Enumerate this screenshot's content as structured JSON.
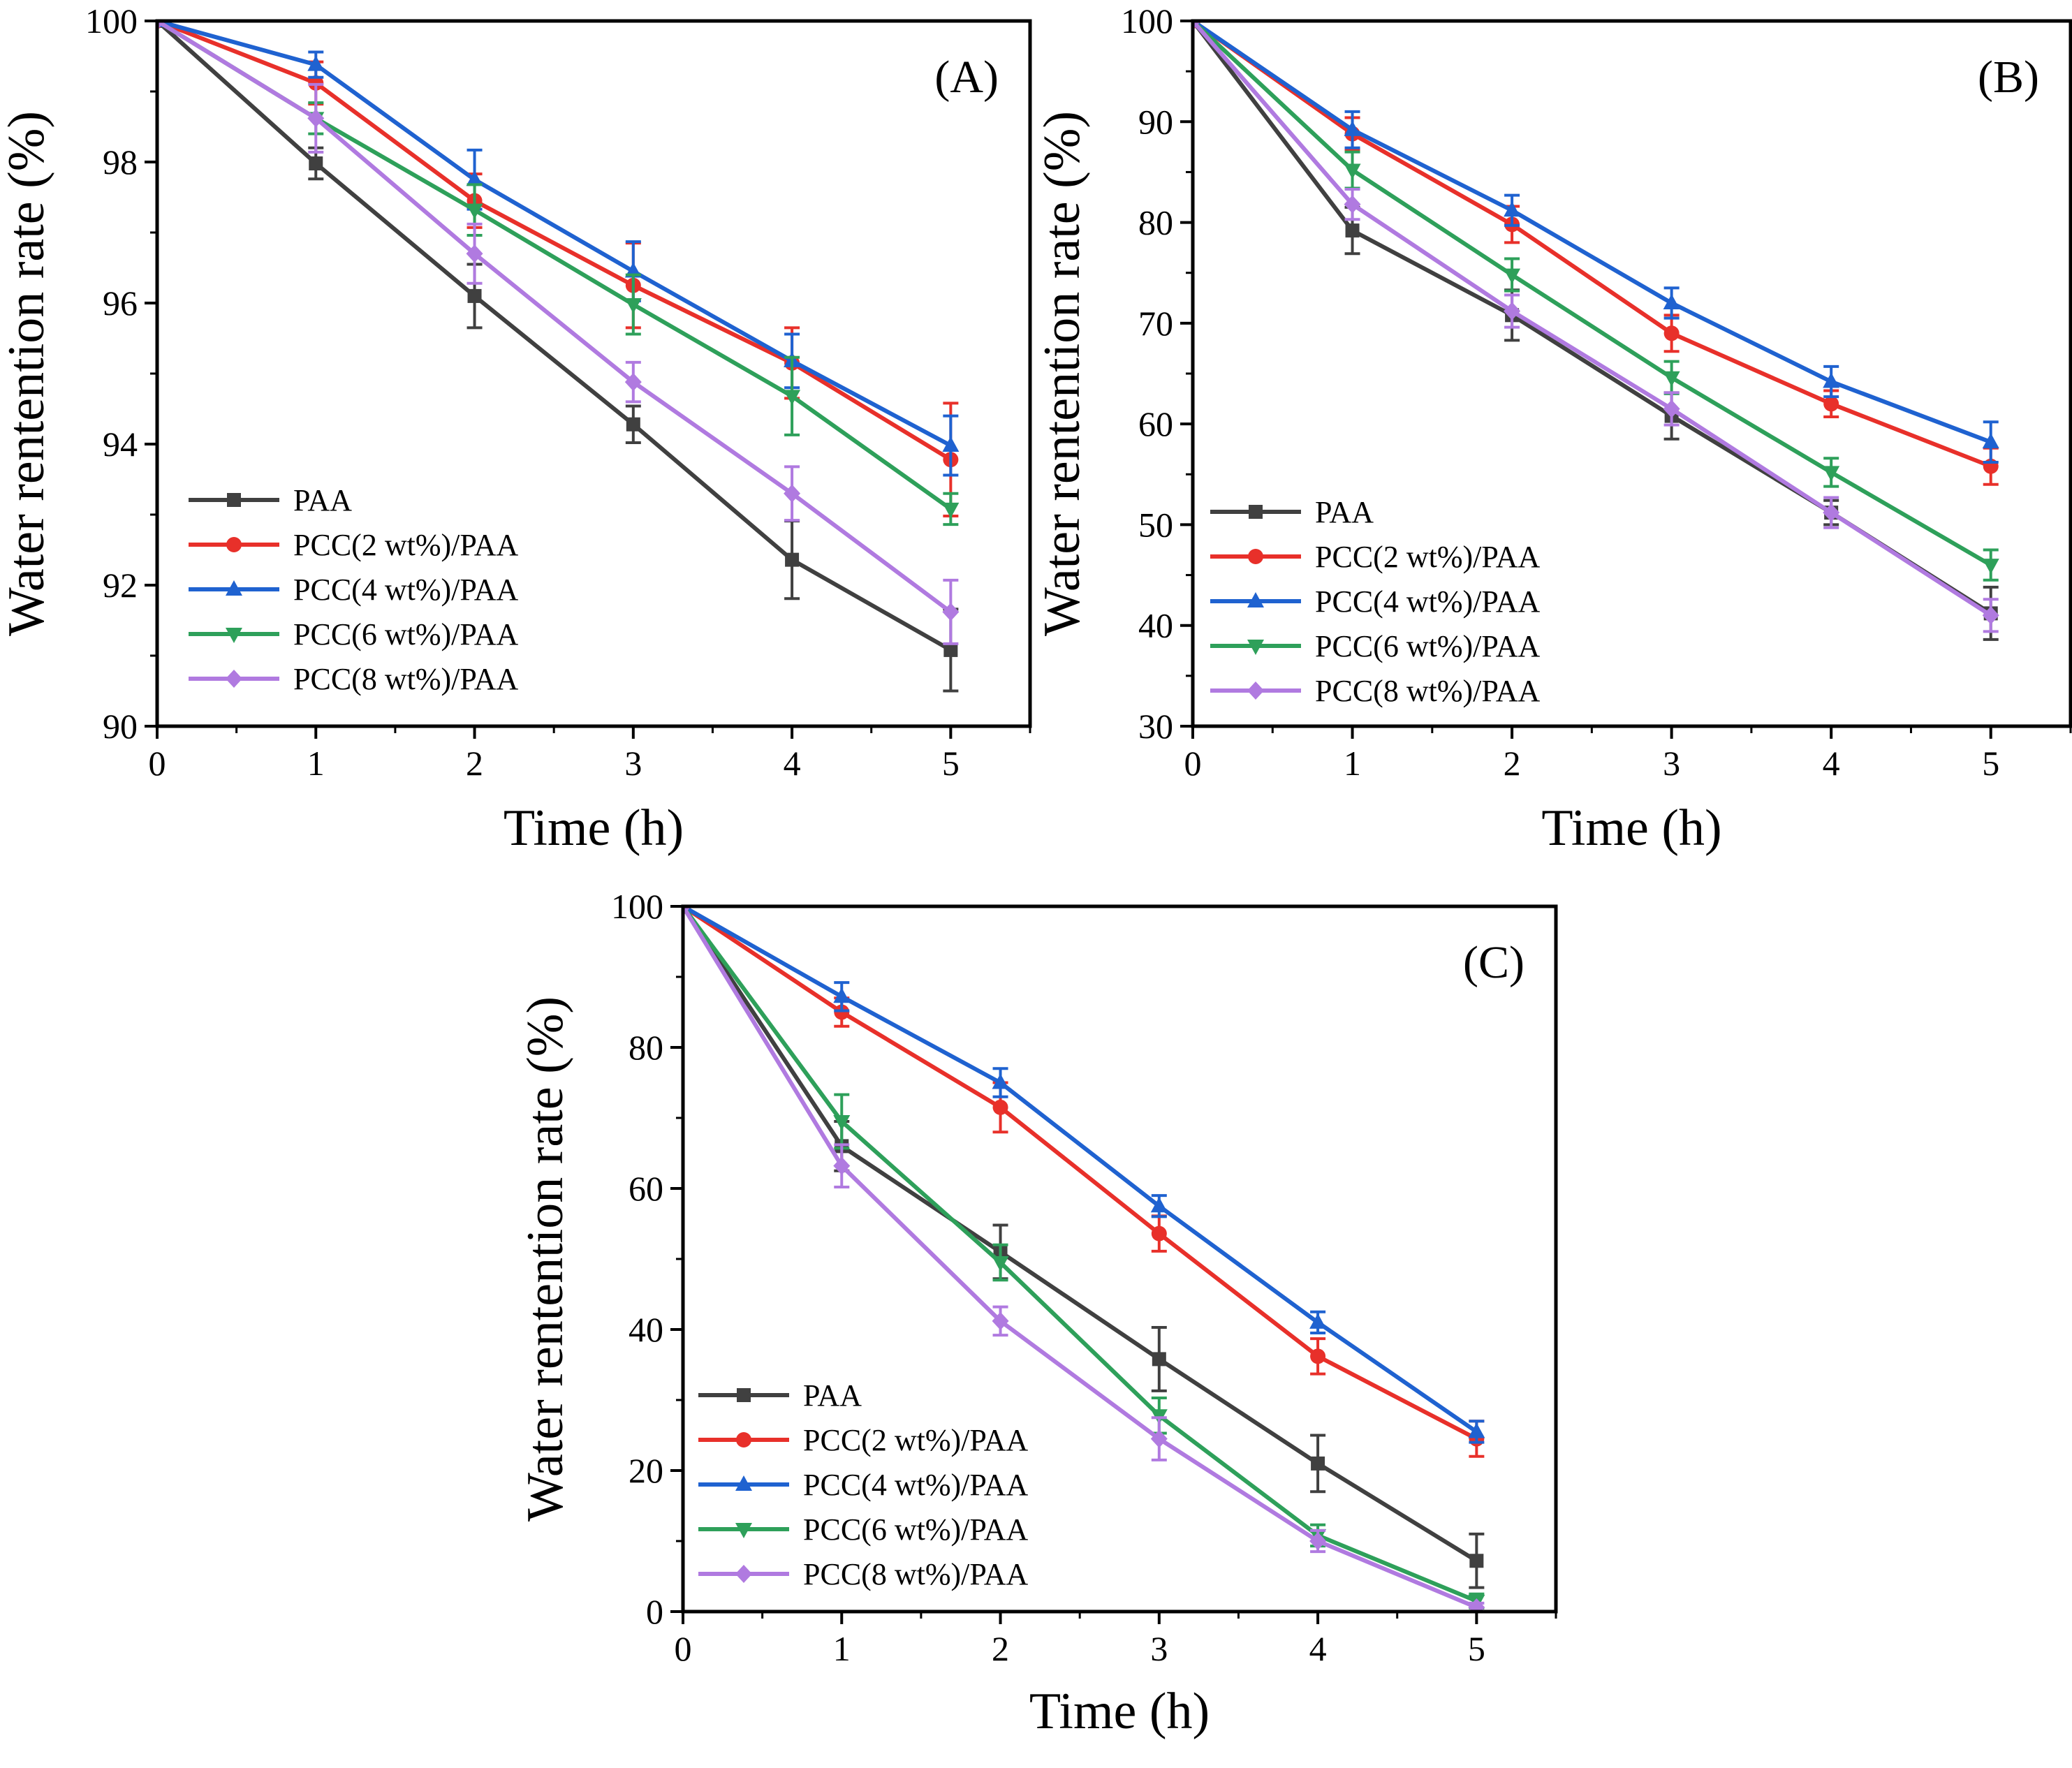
{
  "figure": {
    "x_axis_title": "Time (h)",
    "y_axis_title": "Water rentention rate (%)"
  },
  "chart_data": [
    {
      "type": "line",
      "panel_label": "(A)",
      "xlabel": "Time (h)",
      "ylabel": "Water rentention rate (%)",
      "xlim": [
        0,
        5.5
      ],
      "ylim": [
        90,
        100
      ],
      "x_ticks": [
        0,
        1,
        2,
        3,
        4,
        5
      ],
      "y_ticks": [
        90,
        92,
        94,
        96,
        98,
        100
      ],
      "legend_position": "bottom-left",
      "x": [
        0,
        1,
        2,
        3,
        4,
        5
      ],
      "series": [
        {
          "name": "PAA",
          "color": "#404040",
          "marker": "square",
          "values": [
            100,
            97.98,
            96.1,
            94.28,
            92.36,
            91.08
          ],
          "errors": [
            0,
            0.22,
            0.45,
            0.26,
            0.55,
            0.58
          ]
        },
        {
          "name": "PCC(2 wt%)/PAA",
          "color": "#e8302a",
          "marker": "circle",
          "values": [
            100,
            99.12,
            97.45,
            96.25,
            95.15,
            93.78
          ],
          "errors": [
            0,
            0.3,
            0.38,
            0.6,
            0.5,
            0.8
          ]
        },
        {
          "name": "PCC(4 wt%)/PAA",
          "color": "#1f62d0",
          "marker": "triangle-up",
          "values": [
            100,
            99.38,
            97.75,
            96.45,
            95.18,
            93.98
          ],
          "errors": [
            0,
            0.18,
            0.42,
            0.42,
            0.38,
            0.42
          ]
        },
        {
          "name": "PCC(6 wt%)/PAA",
          "color": "#2ea05a",
          "marker": "triangle-down",
          "values": [
            100,
            98.62,
            97.32,
            95.98,
            94.68,
            93.08
          ],
          "errors": [
            0,
            0.22,
            0.36,
            0.42,
            0.55,
            0.22
          ]
        },
        {
          "name": "PCC(8 wt%)/PAA",
          "color": "#b07ae0",
          "marker": "diamond",
          "values": [
            100,
            98.62,
            96.7,
            94.88,
            93.3,
            91.62
          ],
          "errors": [
            0,
            0.48,
            0.42,
            0.28,
            0.38,
            0.45
          ]
        }
      ]
    },
    {
      "type": "line",
      "panel_label": "(B)",
      "xlabel": "Time (h)",
      "ylabel": "Water rentention rate (%)",
      "xlim": [
        0,
        5.5
      ],
      "ylim": [
        30,
        100
      ],
      "x_ticks": [
        0,
        1,
        2,
        3,
        4,
        5
      ],
      "y_ticks": [
        30,
        40,
        50,
        60,
        70,
        80,
        90,
        100
      ],
      "legend_position": "bottom-left",
      "x": [
        0,
        1,
        2,
        3,
        4,
        5
      ],
      "series": [
        {
          "name": "PAA",
          "color": "#404040",
          "marker": "square",
          "values": [
            100,
            79.2,
            70.8,
            60.8,
            51.2,
            41.2
          ],
          "errors": [
            0,
            2.3,
            2.5,
            2.3,
            1.2,
            2.6
          ]
        },
        {
          "name": "PCC(2 wt%)/PAA",
          "color": "#e8302a",
          "marker": "circle",
          "values": [
            100,
            88.8,
            79.8,
            69.0,
            62.0,
            55.8
          ],
          "errors": [
            0,
            1.6,
            1.8,
            1.8,
            1.3,
            1.8
          ]
        },
        {
          "name": "PCC(4 wt%)/PAA",
          "color": "#1f62d0",
          "marker": "triangle-up",
          "values": [
            100,
            89.2,
            81.2,
            72.0,
            64.2,
            58.2
          ],
          "errors": [
            0,
            1.8,
            1.5,
            1.5,
            1.5,
            2.0
          ]
        },
        {
          "name": "PCC(6 wt%)/PAA",
          "color": "#2ea05a",
          "marker": "triangle-down",
          "values": [
            100,
            85.2,
            74.8,
            64.6,
            55.2,
            46.0
          ],
          "errors": [
            0,
            1.8,
            1.6,
            1.6,
            1.4,
            1.5
          ]
        },
        {
          "name": "PCC(8 wt%)/PAA",
          "color": "#b07ae0",
          "marker": "diamond",
          "values": [
            100,
            81.8,
            71.2,
            61.5,
            51.2,
            41.0
          ],
          "errors": [
            0,
            1.5,
            1.6,
            1.6,
            1.5,
            1.6
          ]
        }
      ]
    },
    {
      "type": "line",
      "panel_label": "(C)",
      "xlabel": "Time (h)",
      "ylabel": "Water rentention rate (%)",
      "xlim": [
        0,
        5.5
      ],
      "ylim": [
        0,
        100
      ],
      "x_ticks": [
        0,
        1,
        2,
        3,
        4,
        5
      ],
      "y_ticks": [
        0,
        20,
        40,
        60,
        80,
        100
      ],
      "legend_position": "bottom-left",
      "x": [
        0,
        1,
        2,
        3,
        4,
        5
      ],
      "series": [
        {
          "name": "PAA",
          "color": "#404040",
          "marker": "square",
          "values": [
            100,
            66.0,
            51.0,
            35.8,
            21.0,
            7.2
          ],
          "errors": [
            0,
            3.5,
            3.8,
            4.5,
            4.0,
            3.8
          ]
        },
        {
          "name": "PCC(2 wt%)/PAA",
          "color": "#e8302a",
          "marker": "circle",
          "values": [
            100,
            85.0,
            71.5,
            53.6,
            36.2,
            24.5
          ],
          "errors": [
            0,
            2.0,
            3.5,
            2.5,
            2.5,
            2.5
          ]
        },
        {
          "name": "PCC(4 wt%)/PAA",
          "color": "#1f62d0",
          "marker": "triangle-up",
          "values": [
            100,
            87.2,
            75.0,
            57.5,
            41.0,
            25.5
          ],
          "errors": [
            0,
            2.0,
            2.0,
            1.5,
            1.5,
            1.5
          ]
        },
        {
          "name": "PCC(6 wt%)/PAA",
          "color": "#2ea05a",
          "marker": "triangle-down",
          "values": [
            100,
            69.5,
            49.5,
            27.8,
            10.8,
            1.5
          ],
          "errors": [
            0,
            3.8,
            2.5,
            2.5,
            1.5,
            1.0
          ]
        },
        {
          "name": "PCC(8 wt%)/PAA",
          "color": "#b07ae0",
          "marker": "diamond",
          "values": [
            100,
            63.2,
            41.2,
            24.5,
            10.0,
            0.6
          ],
          "errors": [
            0,
            3.0,
            2.0,
            3.0,
            1.5,
            0.6
          ]
        }
      ]
    }
  ]
}
